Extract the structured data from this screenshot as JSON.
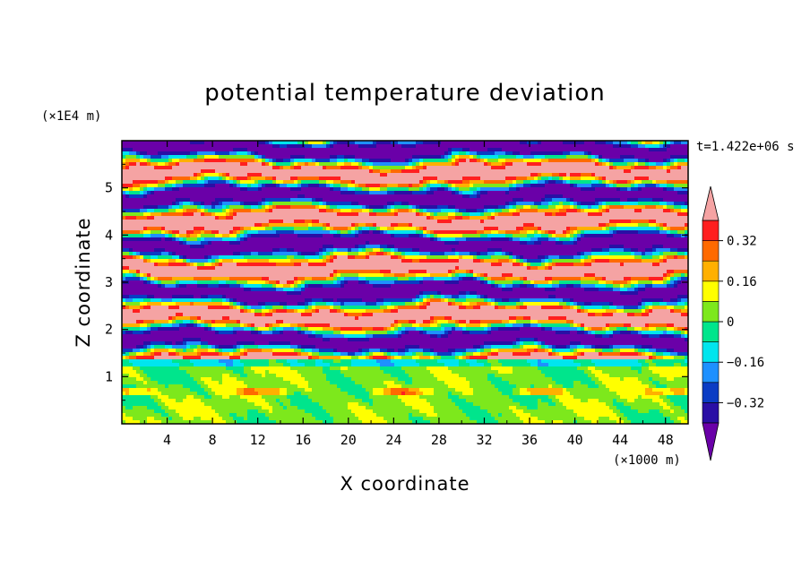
{
  "chart_data": {
    "type": "heatmap",
    "title": "potential temperature deviation",
    "xlabel": "X coordinate",
    "ylabel": "Z coordinate",
    "x_unit": "(×1000 m)",
    "y_unit": "(×1E4 m)",
    "time_label": "t=1.422e+06 s",
    "xlim": [
      0,
      50
    ],
    "ylim": [
      0,
      6
    ],
    "x_ticks": [
      "4",
      "8",
      "12",
      "16",
      "20",
      "24",
      "28",
      "32",
      "36",
      "40",
      "44",
      "48"
    ],
    "y_ticks": [
      "1",
      "2",
      "3",
      "4",
      "5"
    ],
    "colorbar": {
      "levels": [
        -0.4,
        -0.32,
        -0.24,
        -0.16,
        -0.08,
        0,
        0.08,
        0.16,
        0.24,
        0.32,
        0.4
      ],
      "labels": [
        "0.32",
        "0.16",
        "0",
        "-0.16",
        "-0.32"
      ],
      "label_values": [
        0.32,
        0.16,
        0,
        -0.16,
        -0.32
      ],
      "colors": [
        "#6a00a8",
        "#2a0fa5",
        "#0b3cc4",
        "#1e90ff",
        "#00e5ee",
        "#00e58c",
        "#7de81c",
        "#ffff00",
        "#ffb000",
        "#ff6a00",
        "#ff1f1f",
        "#f5a3a3"
      ],
      "extend": "both"
    },
    "layers": [
      {
        "z_range": [
          0,
          1.4
        ],
        "description_values": [
          -0.08,
          0.08
        ]
      },
      {
        "z_range": [
          1.4,
          6
        ],
        "description_values": [
          -0.4,
          0.4
        ]
      }
    ]
  }
}
